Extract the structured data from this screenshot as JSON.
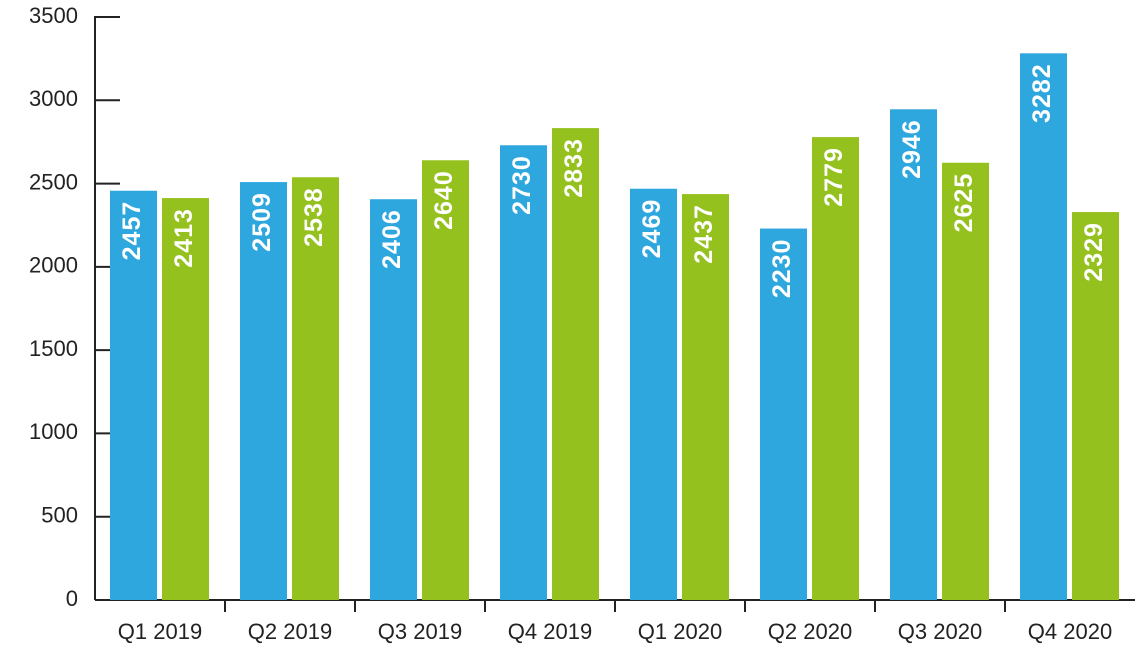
{
  "chart_data": {
    "type": "bar",
    "categories": [
      "Q1 2019",
      "Q2 2019",
      "Q3 2019",
      "Q4 2019",
      "Q1 2020",
      "Q2 2020",
      "Q3 2020",
      "Q4 2020"
    ],
    "series": [
      {
        "color": "#2ea7df",
        "values": [
          2457,
          2509,
          2406,
          2730,
          2469,
          2230,
          2946,
          3282
        ]
      },
      {
        "color": "#95c11f",
        "values": [
          2413,
          2538,
          2640,
          2833,
          2437,
          2779,
          2625,
          2329
        ]
      }
    ],
    "ylim": [
      0,
      3500
    ],
    "yticks": [
      0,
      500,
      1000,
      1500,
      2000,
      2500,
      3000,
      3500
    ],
    "grid": false
  }
}
